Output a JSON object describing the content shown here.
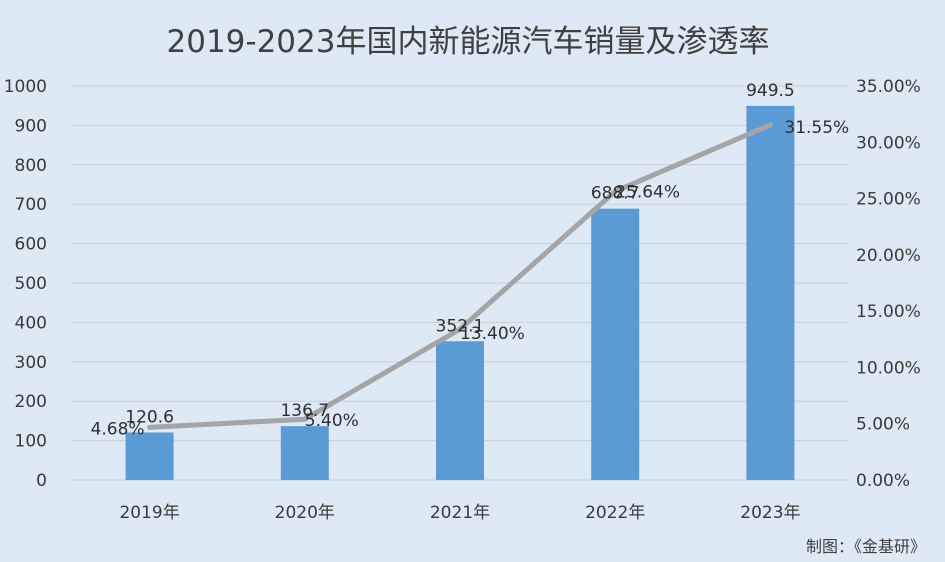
{
  "chart_data": {
    "type": "bar+line",
    "title": "2019-2023年国内新能源汽车销量及渗透率",
    "categories": [
      "2019年",
      "2020年",
      "2021年",
      "2022年",
      "2023年"
    ],
    "series": [
      {
        "kind": "bar",
        "axis": "left",
        "values": [
          120.6,
          136.7,
          352.1,
          688.7,
          949.5
        ],
        "labels": [
          "120.6",
          "136.7",
          "352.1",
          "688.7",
          "949.5"
        ],
        "color": "#5b9bd5"
      },
      {
        "kind": "line",
        "axis": "right",
        "values": [
          4.68,
          5.4,
          13.4,
          25.64,
          31.55
        ],
        "labels": [
          "4.68%",
          "5.40%",
          "13.40%",
          "25.64%",
          "31.55%"
        ],
        "color": "#a5a5a5"
      }
    ],
    "y_left": {
      "min": 0,
      "max": 1000,
      "ticks": [
        0,
        100,
        200,
        300,
        400,
        500,
        600,
        700,
        800,
        900,
        1000
      ],
      "tick_labels": [
        "0",
        "100",
        "200",
        "300",
        "400",
        "500",
        "600",
        "700",
        "800",
        "900",
        "1000"
      ]
    },
    "y_right": {
      "min": 0,
      "max": 35,
      "ticks": [
        0,
        5,
        10,
        15,
        20,
        25,
        30,
        35
      ],
      "tick_labels": [
        "0.00%",
        "5.00%",
        "10.00%",
        "15.00%",
        "20.00%",
        "25.00%",
        "30.00%",
        "35.00%"
      ]
    },
    "grid": true,
    "legend": "none"
  },
  "source_note": "制图：《金基研》",
  "colors": {
    "background": "#dde9f5",
    "grid": "#c8cfd8",
    "bar": "#5b9bd5",
    "line": "#a5a5a5"
  }
}
